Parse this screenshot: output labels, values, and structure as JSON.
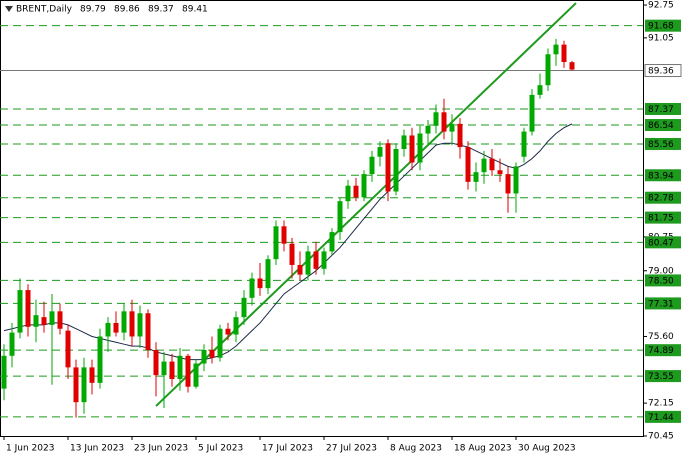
{
  "chart_data": {
    "type": "candlestick",
    "title": "BRENT,Daily",
    "categories": [
      "1 Jun 2023",
      null,
      null,
      null,
      null,
      null,
      null,
      null,
      "13 Jun 2023",
      null,
      null,
      null,
      null,
      null,
      null,
      null,
      "23 Jun 2023",
      null,
      null,
      null,
      null,
      null,
      null,
      null,
      "5 Jul 2023",
      null,
      null,
      null,
      null,
      null,
      null,
      null,
      "17 Jul 2023",
      null,
      null,
      null,
      null,
      null,
      null,
      null,
      "27 Jul 2023",
      null,
      null,
      null,
      null,
      null,
      null,
      null,
      "8 Aug 2023",
      null,
      null,
      null,
      null,
      null,
      null,
      null,
      "18 Aug 2023",
      null,
      null,
      null,
      null,
      null,
      null,
      null,
      "30 Aug 2023",
      null,
      null,
      null,
      null,
      null,
      null,
      null
    ],
    "ohlc": [
      [
        72.9,
        75.2,
        72.3,
        74.6
      ],
      [
        74.6,
        76.3,
        74.0,
        75.8
      ],
      [
        75.8,
        78.6,
        75.5,
        78.0
      ],
      [
        78.0,
        78.3,
        75.6,
        76.1
      ],
      [
        76.1,
        77.5,
        75.3,
        76.7
      ],
      [
        76.6,
        77.4,
        75.8,
        76.2
      ],
      [
        76.2,
        77.8,
        73.1,
        76.9
      ],
      [
        76.9,
        77.3,
        75.7,
        76.0
      ],
      [
        75.9,
        76.2,
        73.4,
        74.0
      ],
      [
        74.0,
        74.4,
        71.4,
        72.2
      ],
      [
        72.2,
        74.5,
        71.6,
        74.0
      ],
      [
        74.0,
        74.4,
        72.6,
        73.2
      ],
      [
        73.2,
        76.0,
        72.9,
        75.6
      ],
      [
        75.6,
        76.6,
        74.8,
        76.3
      ],
      [
        76.3,
        76.9,
        75.6,
        75.8
      ],
      [
        75.8,
        77.3,
        75.4,
        76.9
      ],
      [
        76.9,
        77.5,
        75.1,
        75.6
      ],
      [
        75.6,
        77.2,
        75.0,
        76.8
      ],
      [
        76.8,
        77.0,
        74.5,
        74.9
      ],
      [
        74.9,
        75.3,
        72.5,
        73.6
      ],
      [
        73.6,
        74.8,
        71.9,
        74.3
      ],
      [
        74.3,
        74.7,
        73.0,
        73.4
      ],
      [
        73.4,
        75.0,
        72.8,
        74.6
      ],
      [
        74.6,
        74.7,
        72.7,
        73.0
      ],
      [
        73.0,
        74.4,
        72.9,
        74.2
      ],
      [
        74.2,
        75.2,
        73.8,
        74.9
      ],
      [
        74.9,
        75.6,
        74.2,
        74.5
      ],
      [
        74.5,
        76.2,
        74.3,
        76.0
      ],
      [
        76.0,
        76.3,
        75.4,
        75.7
      ],
      [
        75.7,
        76.9,
        75.3,
        76.6
      ],
      [
        76.6,
        78.0,
        76.2,
        77.6
      ],
      [
        77.6,
        78.9,
        77.2,
        78.6
      ],
      [
        78.6,
        79.4,
        77.7,
        78.1
      ],
      [
        78.1,
        79.8,
        77.8,
        79.6
      ],
      [
        79.6,
        81.6,
        79.3,
        81.3
      ],
      [
        81.3,
        81.6,
        80.0,
        80.4
      ],
      [
        80.4,
        80.7,
        78.6,
        79.3
      ],
      [
        79.3,
        80.0,
        78.5,
        78.8
      ],
      [
        78.8,
        80.3,
        78.5,
        80.0
      ],
      [
        80.0,
        80.5,
        78.8,
        79.1
      ],
      [
        79.1,
        80.2,
        78.8,
        80.0
      ],
      [
        80.0,
        81.2,
        79.8,
        81.0
      ],
      [
        81.0,
        82.8,
        80.6,
        82.6
      ],
      [
        82.6,
        83.7,
        82.2,
        83.4
      ],
      [
        83.4,
        83.8,
        82.6,
        82.8
      ],
      [
        82.8,
        84.2,
        82.6,
        84.0
      ],
      [
        84.0,
        85.2,
        83.6,
        84.9
      ],
      [
        84.9,
        85.7,
        84.4,
        85.4
      ],
      [
        85.6,
        85.8,
        82.6,
        83.1
      ],
      [
        83.1,
        85.6,
        82.9,
        85.3
      ],
      [
        85.3,
        86.3,
        84.9,
        86.0
      ],
      [
        86.0,
        86.4,
        84.2,
        84.6
      ],
      [
        84.6,
        86.5,
        84.2,
        86.1
      ],
      [
        86.1,
        86.8,
        85.5,
        86.5
      ],
      [
        86.5,
        87.6,
        86.1,
        87.2
      ],
      [
        87.2,
        87.9,
        85.8,
        86.2
      ],
      [
        86.2,
        87.1,
        85.5,
        86.6
      ],
      [
        86.6,
        86.9,
        84.8,
        85.4
      ],
      [
        85.4,
        85.7,
        83.2,
        83.6
      ],
      [
        83.6,
        84.6,
        83.1,
        84.1
      ],
      [
        84.1,
        85.2,
        83.5,
        84.8
      ],
      [
        84.8,
        85.3,
        83.9,
        84.2
      ],
      [
        84.2,
        84.8,
        83.6,
        84.0
      ],
      [
        84.0,
        84.4,
        82.0,
        83.0
      ],
      [
        83.0,
        84.6,
        82.0,
        84.4
      ],
      [
        84.9,
        86.4,
        84.6,
        86.2
      ],
      [
        86.2,
        88.4,
        86.0,
        88.1
      ],
      [
        88.1,
        89.2,
        87.9,
        88.6
      ],
      [
        88.6,
        90.5,
        88.3,
        90.2
      ],
      [
        90.2,
        91.0,
        89.6,
        90.7
      ],
      [
        90.7,
        90.9,
        89.5,
        89.8
      ],
      [
        89.79,
        89.86,
        89.37,
        89.41
      ]
    ],
    "up_color": "#00a800",
    "down_color": "#e00000",
    "moving_average": {
      "color": "#1c2a48",
      "values": [
        75.9,
        76.0,
        76.1,
        76.2,
        76.2,
        76.2,
        76.3,
        76.3,
        76.2,
        76.0,
        75.8,
        75.6,
        75.5,
        75.4,
        75.3,
        75.2,
        75.1,
        75.1,
        75.0,
        74.8,
        74.7,
        74.6,
        74.5,
        74.4,
        74.4,
        74.4,
        74.5,
        74.6,
        74.8,
        75.1,
        75.5,
        75.9,
        76.3,
        76.8,
        77.3,
        77.8,
        78.1,
        78.4,
        78.7,
        79.0,
        79.4,
        79.8,
        80.2,
        80.7,
        81.2,
        81.7,
        82.2,
        82.7,
        83.1,
        83.5,
        83.9,
        84.3,
        84.7,
        85.1,
        85.5,
        85.6,
        85.6,
        85.5,
        85.4,
        85.2,
        85.0,
        84.8,
        84.6,
        84.4,
        84.3,
        84.5,
        84.8,
        85.2,
        85.7,
        86.1,
        86.4,
        86.6
      ]
    },
    "trendline": {
      "color": "#1e9a1e",
      "x": [
        19,
        71.5
      ],
      "values": [
        72.0,
        92.85
      ]
    },
    "levels": [
      91.68,
      87.37,
      86.54,
      85.56,
      83.94,
      82.78,
      81.75,
      80.47,
      {
        "value": 78.5,
        "label": "78.50"
      },
      77.31,
      74.89,
      73.55,
      71.44
    ],
    "level_color": "#1e9a1e",
    "price_line": 89.36,
    "ylim": [
      70.45,
      92.75
    ],
    "yticks": [
      92.75,
      91.05,
      80.75,
      {
        "value": 79,
        "label": "79.00"
      },
      {
        "value": 75.6,
        "label": "75.60"
      },
      72.15,
      70.45
    ]
  }
}
